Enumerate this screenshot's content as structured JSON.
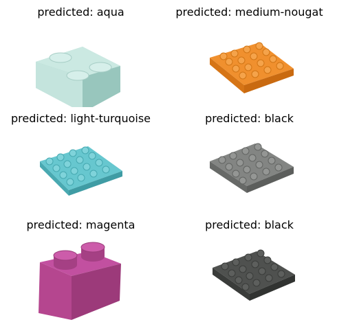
{
  "panels": [
    {
      "title": "predicted: aqua",
      "piece": "brick-2x2-corner",
      "color": "#b6dcd4"
    },
    {
      "title": "predicted: medium-nougat",
      "piece": "plate-4x4",
      "color": "#e8842a"
    },
    {
      "title": "predicted: light-turquoise",
      "piece": "plate-4x4",
      "color": "#5cc0c8"
    },
    {
      "title": "predicted: black",
      "piece": "plate-4x4",
      "color": "#7b7d7b"
    },
    {
      "title": "predicted: magenta",
      "piece": "brick-1x2",
      "color": "#b0428e"
    },
    {
      "title": "predicted: black",
      "piece": "plate-4x4",
      "color": "#4a4c4a"
    }
  ]
}
